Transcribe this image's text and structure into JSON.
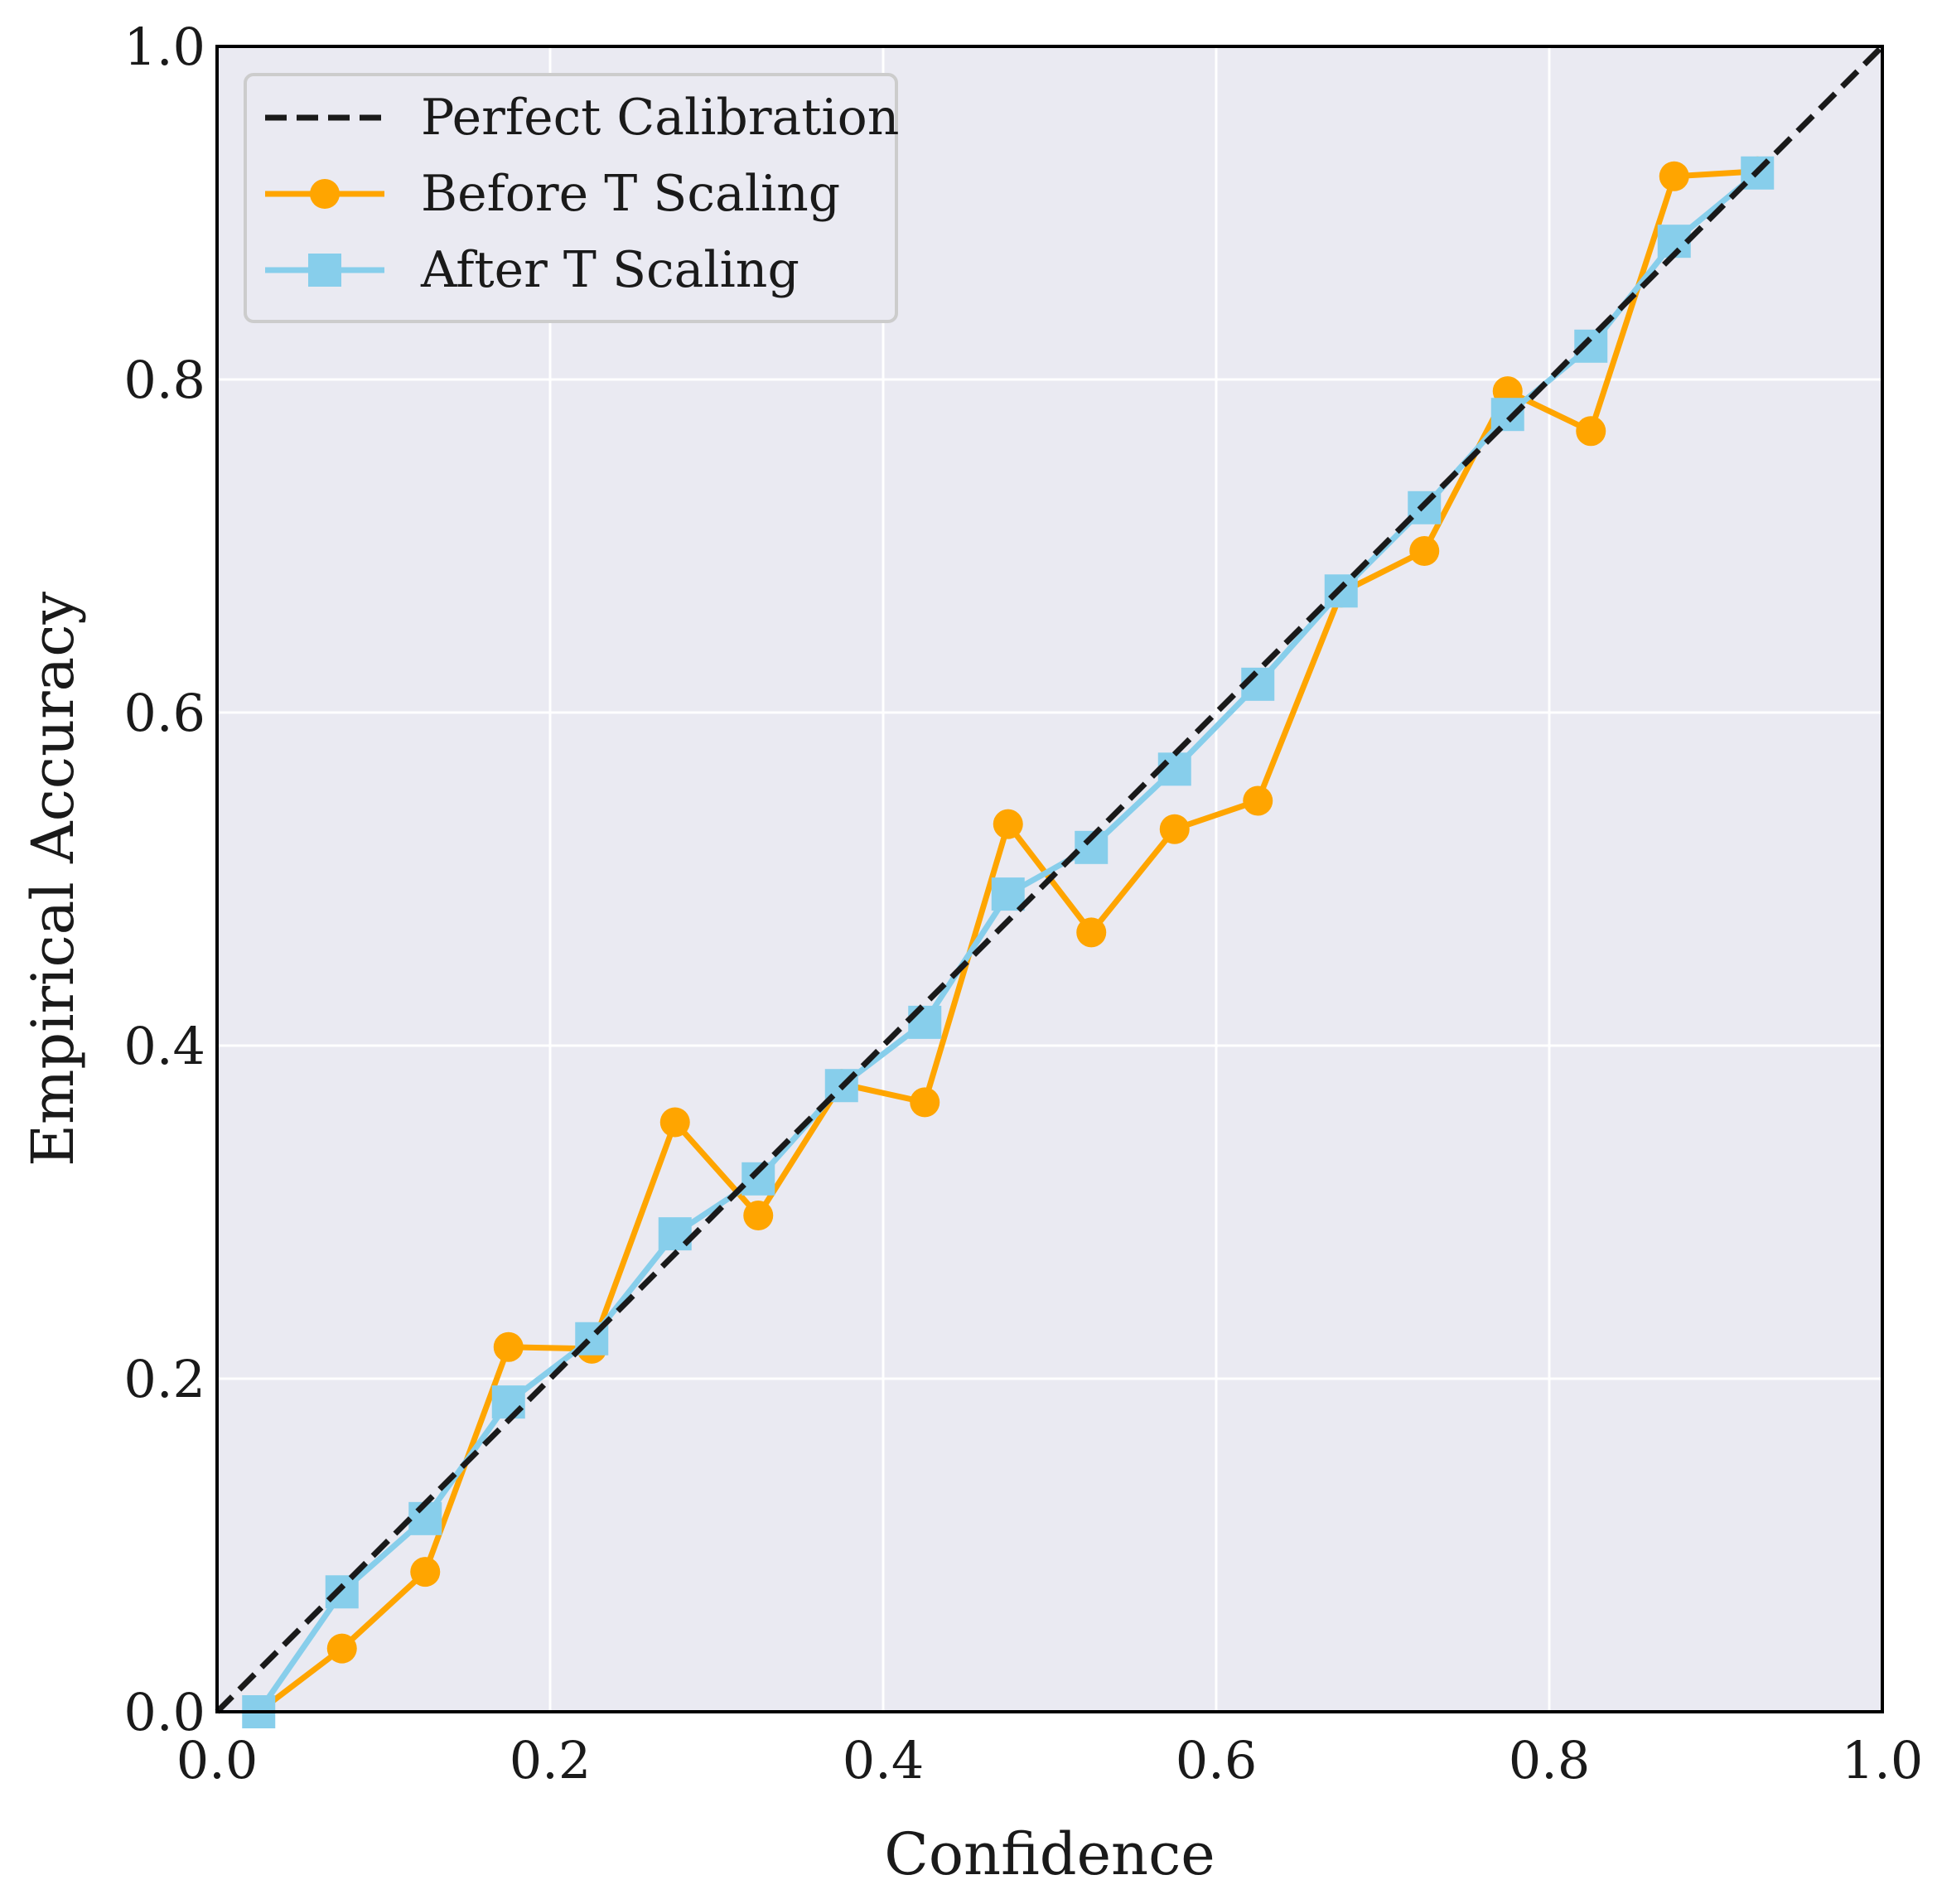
{
  "chart_data": {
    "type": "line",
    "title": "",
    "xlabel": "Confidence",
    "ylabel": "Empirical Accuracy",
    "xlim": [
      0,
      1
    ],
    "ylim": [
      0,
      1
    ],
    "xticks": [
      "0.0",
      "0.2",
      "0.4",
      "0.6",
      "0.8",
      "1.0"
    ],
    "yticks": [
      "0.0",
      "0.2",
      "0.4",
      "0.6",
      "0.8",
      "1.0"
    ],
    "grid": true,
    "legend_position": "top-left",
    "colors": {
      "background": "#eaeaf2",
      "perfect": "#1a1a1a",
      "before": "#ffa500",
      "after": "#87ceeb"
    },
    "series": [
      {
        "name": "Perfect Calibration",
        "style": "dashed",
        "x": [
          0,
          1
        ],
        "y": [
          0,
          1
        ]
      },
      {
        "name": "Before T Scaling",
        "marker": "circle",
        "x": [
          0.025,
          0.075,
          0.125,
          0.175,
          0.225,
          0.275,
          0.325,
          0.375,
          0.425,
          0.475,
          0.525,
          0.575,
          0.625,
          0.675,
          0.725,
          0.775,
          0.825,
          0.875,
          0.925
        ],
        "y": [
          0.0,
          0.038,
          0.084,
          0.219,
          0.218,
          0.354,
          0.298,
          0.377,
          0.366,
          0.533,
          0.468,
          0.53,
          0.547,
          0.672,
          0.697,
          0.793,
          0.769,
          0.922,
          0.925
        ]
      },
      {
        "name": "After T Scaling",
        "marker": "square",
        "x": [
          0.025,
          0.075,
          0.125,
          0.175,
          0.225,
          0.275,
          0.325,
          0.375,
          0.425,
          0.475,
          0.525,
          0.575,
          0.625,
          0.675,
          0.725,
          0.775,
          0.825,
          0.875,
          0.925
        ],
        "y": [
          0.0,
          0.072,
          0.116,
          0.186,
          0.224,
          0.287,
          0.32,
          0.376,
          0.414,
          0.491,
          0.519,
          0.566,
          0.617,
          0.673,
          0.723,
          0.779,
          0.82,
          0.883,
          0.924
        ]
      }
    ]
  }
}
